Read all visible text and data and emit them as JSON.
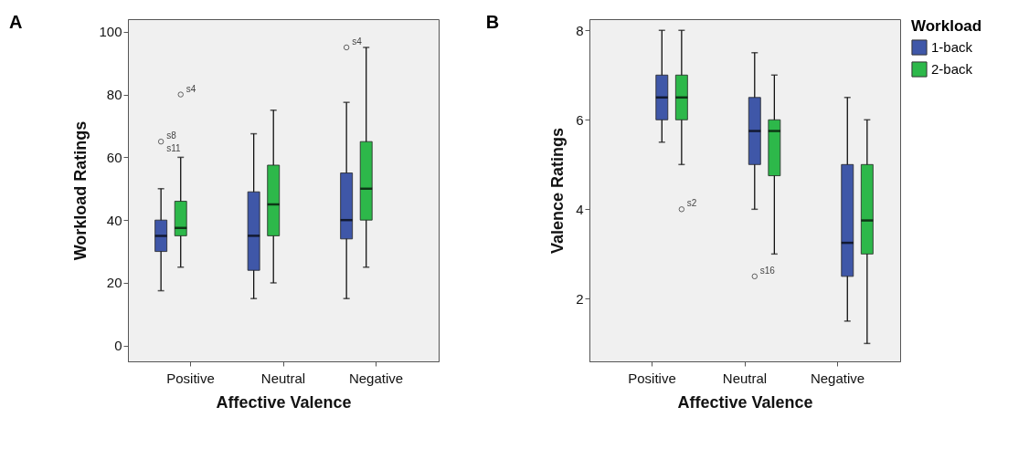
{
  "chart_data": [
    {
      "type": "box",
      "title": "A",
      "xlabel": "Affective Valence",
      "ylabel": "Workload Ratings",
      "categories": [
        "Positive",
        "Neutral",
        "Negative"
      ],
      "ylim": [
        -5,
        104
      ],
      "yticks": [
        0,
        20,
        40,
        60,
        80,
        100
      ],
      "grid": false,
      "legend": false,
      "series": [
        {
          "color": "#3f57a8",
          "boxes": [
            {
              "low": 17.5,
              "q1": 30,
              "median": 35,
              "q3": 40,
              "high": 50,
              "outliers": [
                65
              ]
            },
            {
              "low": 15,
              "q1": 24,
              "median": 35,
              "q3": 49,
              "high": 67.5
            },
            {
              "low": 15,
              "q1": 34,
              "median": 40,
              "q3": 55,
              "high": 77.5,
              "outliers": [
                95
              ]
            }
          ]
        },
        {
          "color": "#2db84a",
          "boxes": [
            {
              "low": 25,
              "q1": 35,
              "median": 37.5,
              "q3": 46,
              "high": 60,
              "outliers": [
                80
              ]
            },
            {
              "low": 20,
              "q1": 35,
              "median": 45,
              "q3": 57.5,
              "high": 75
            },
            {
              "low": 25,
              "q1": 40,
              "median": 50,
              "q3": 65,
              "high": 95
            }
          ]
        }
      ],
      "annotations": [
        "s8",
        "s11",
        "s4",
        "s4"
      ]
    },
    {
      "type": "box",
      "title": "B",
      "xlabel": "Affective Valence",
      "ylabel": "Valence Ratings",
      "categories": [
        "Positive",
        "Neutral",
        "Negative"
      ],
      "ylim": [
        0.6,
        8.25
      ],
      "yticks": [
        2,
        4,
        6,
        8
      ],
      "grid": false,
      "legend": "top right",
      "legend_title": "Workload",
      "series": [
        {
          "name": "1-back",
          "color": "#3f57a8",
          "boxes": [
            {
              "low": 5.5,
              "q1": 6,
              "median": 6.5,
              "q3": 7,
              "high": 8
            },
            {
              "low": 4,
              "q1": 5,
              "median": 5.75,
              "q3": 6.5,
              "high": 7.5,
              "outliers": [
                2.5
              ]
            },
            {
              "low": 1.5,
              "q1": 2.5,
              "median": 3.25,
              "q3": 5,
              "high": 6.5
            }
          ]
        },
        {
          "name": "2-back",
          "color": "#2db84a",
          "boxes": [
            {
              "low": 5,
              "q1": 6,
              "median": 6.5,
              "q3": 7,
              "high": 8,
              "outliers": [
                4
              ]
            },
            {
              "low": 3,
              "q1": 4.75,
              "median": 5.75,
              "q3": 6,
              "high": 7
            },
            {
              "low": 1,
              "q1": 3,
              "median": 3.75,
              "q3": 5,
              "high": 6
            }
          ]
        }
      ],
      "annotations": [
        "s2",
        "s16"
      ]
    }
  ]
}
